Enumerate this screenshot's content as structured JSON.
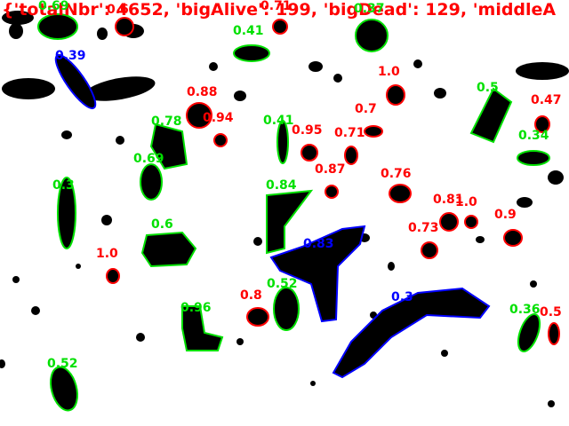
{
  "stats_banner": "{'totalNbr': 4652, 'bigAlive': 199, 'bigDead': 129, 'middleA",
  "colors": {
    "alive": "#00e000",
    "dead": "#ff0000",
    "middle": "#0000ff",
    "cell": "#000000",
    "background": "#ffffff"
  },
  "labels": {
    "l0": "0.69",
    "l1": "0.6",
    "l2": "0.71",
    "l3": "0.41",
    "l4": "0.37",
    "l5": "0.39",
    "l6": "1.0",
    "l7": "0.5",
    "l8": "0.88",
    "l9": "0.47",
    "l10": "0.78",
    "l11": "0.94",
    "l12": "0.41",
    "l13": "0.95",
    "l14": "0.7",
    "l15": "0.71",
    "l16": "0.34",
    "l17": "0.69",
    "l18": "0.87",
    "l19": "0.76",
    "l20": "0.3",
    "l21": "0.84",
    "l22": "0.81",
    "l23": "1.0",
    "l24": "0.6",
    "l25": "0.73",
    "l26": "0.9",
    "l27": "0.83",
    "l28": "1.0",
    "l29": "0.8",
    "l30": "0.52",
    "l31": "0.3",
    "l32": "0.96",
    "l33": "0.36",
    "l34": "0.5",
    "l35": "0.52"
  }
}
